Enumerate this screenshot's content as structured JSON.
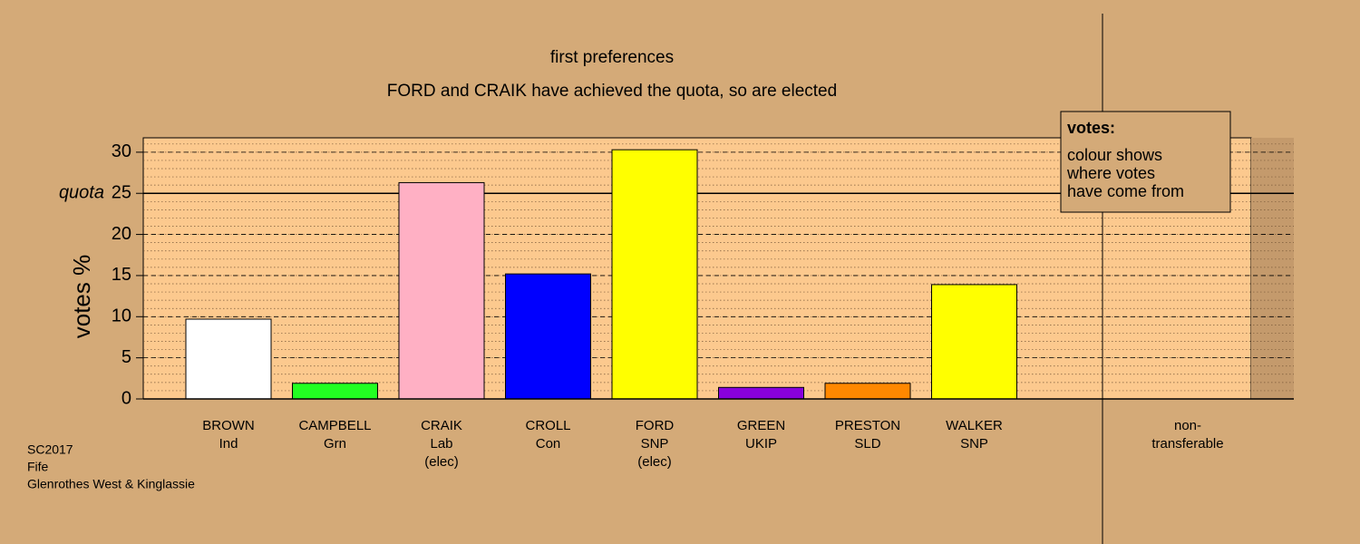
{
  "chart_data": {
    "type": "bar",
    "title": "first preferences",
    "subtitle": "FORD and CRAIK have achieved the quota, so are elected",
    "y_label": "votes %",
    "categories": [
      "BROWN",
      "CAMPBELL",
      "CRAIK",
      "CROLL",
      "FORD",
      "GREEN",
      "PRESTON",
      "WALKER"
    ],
    "parties": [
      "Ind",
      "Grn",
      "Lab",
      "Con",
      "SNP",
      "UKIP",
      "SLD",
      "SNP"
    ],
    "status": [
      null,
      null,
      "(elec)",
      null,
      "(elec)",
      null,
      null,
      null
    ],
    "values": [
      9.7,
      1.9,
      26.3,
      15.2,
      30.3,
      1.4,
      1.9,
      13.9
    ],
    "colors": [
      "#ffffff",
      "#22ff22",
      "#ffb0c4",
      "#0000ff",
      "#ffff00",
      "#8800dd",
      "#ff8800",
      "#ffff00"
    ],
    "nontransferable_label": [
      "non-",
      "transferable"
    ],
    "quota": 25,
    "quota_label": "quota",
    "ylim": [
      0,
      31.75
    ],
    "yticks": [
      0,
      5,
      10,
      15,
      20,
      25,
      30
    ],
    "minor_grid_step": 1,
    "grid": true,
    "legend": {
      "title": "votes:",
      "lines": [
        "colour shows",
        "where votes",
        "have come from"
      ]
    },
    "footer": [
      "SC2017",
      "Fife",
      "Glenrothes West & Kinglassie"
    ]
  }
}
